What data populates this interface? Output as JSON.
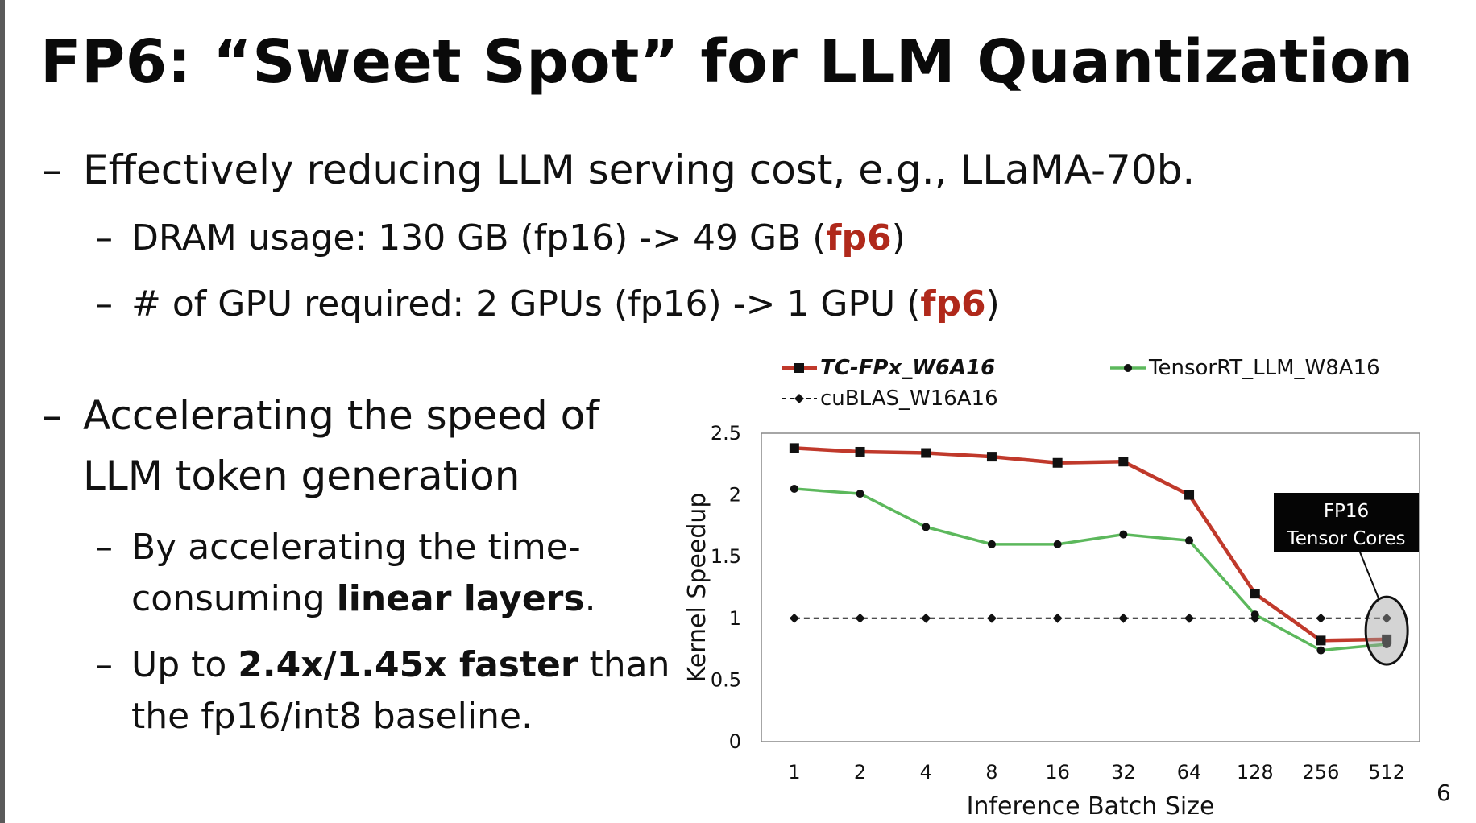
{
  "slide": {
    "title": "FP6: “Sweet Spot” for LLM Quantization",
    "page_number": "6",
    "bullet_dash": "–",
    "bullets": {
      "cost": "Effectively reducing LLM serving cost, e.g., LLaMA-70b.",
      "dram": {
        "prefix": "DRAM usage: 130 GB (fp16) -> 49 GB (",
        "highlight": "fp6",
        "suffix": ")"
      },
      "gpu": {
        "prefix": "# of GPU required: 2 GPUs (fp16) -> 1 GPU (",
        "highlight": "fp6",
        "suffix": ")"
      },
      "speed_line1": "Accelerating the speed of",
      "speed_line2": "LLM token generation",
      "linear_line1": "By accelerating the time-",
      "linear_line2_prefix": "consuming ",
      "linear_line2_bold": "linear layers",
      "linear_line2_suffix": ".",
      "faster_line1_prefix": "Up to ",
      "faster_line1_bold": "2.4x/1.45x faster",
      "faster_line1_suffix": " than",
      "faster_line2": "the fp16/int8 baseline."
    }
  },
  "chart_data": {
    "type": "line",
    "categories": [
      "1",
      "2",
      "4",
      "8",
      "16",
      "32",
      "64",
      "128",
      "256",
      "512"
    ],
    "series": [
      {
        "name": "TC-FPx_W6A16",
        "color": "#c0392b",
        "marker": "square",
        "values": [
          2.38,
          2.35,
          2.34,
          2.31,
          2.26,
          2.27,
          2.0,
          1.2,
          0.82,
          0.83
        ]
      },
      {
        "name": "TensorRT_LLM_W8A16",
        "color": "#5cb85c",
        "marker": "dot",
        "values": [
          2.05,
          2.01,
          1.74,
          1.6,
          1.6,
          1.68,
          1.63,
          1.03,
          0.74,
          0.79
        ]
      },
      {
        "name": "cuBLAS_W16A16",
        "color": "#111111",
        "marker": "diamond",
        "values": [
          1,
          1,
          1,
          1,
          1,
          1,
          1,
          1,
          1,
          1
        ]
      }
    ],
    "xlabel": "Inference Batch Size",
    "ylabel": "Kernel Speedup",
    "ylim": [
      0,
      2.5
    ],
    "yticks": [
      "0",
      "0.5",
      "1",
      "1.5",
      "2",
      "2.5"
    ],
    "grid": false,
    "legend": "top",
    "annotation": {
      "line1": "FP16",
      "line2": "Tensor Cores"
    }
  }
}
